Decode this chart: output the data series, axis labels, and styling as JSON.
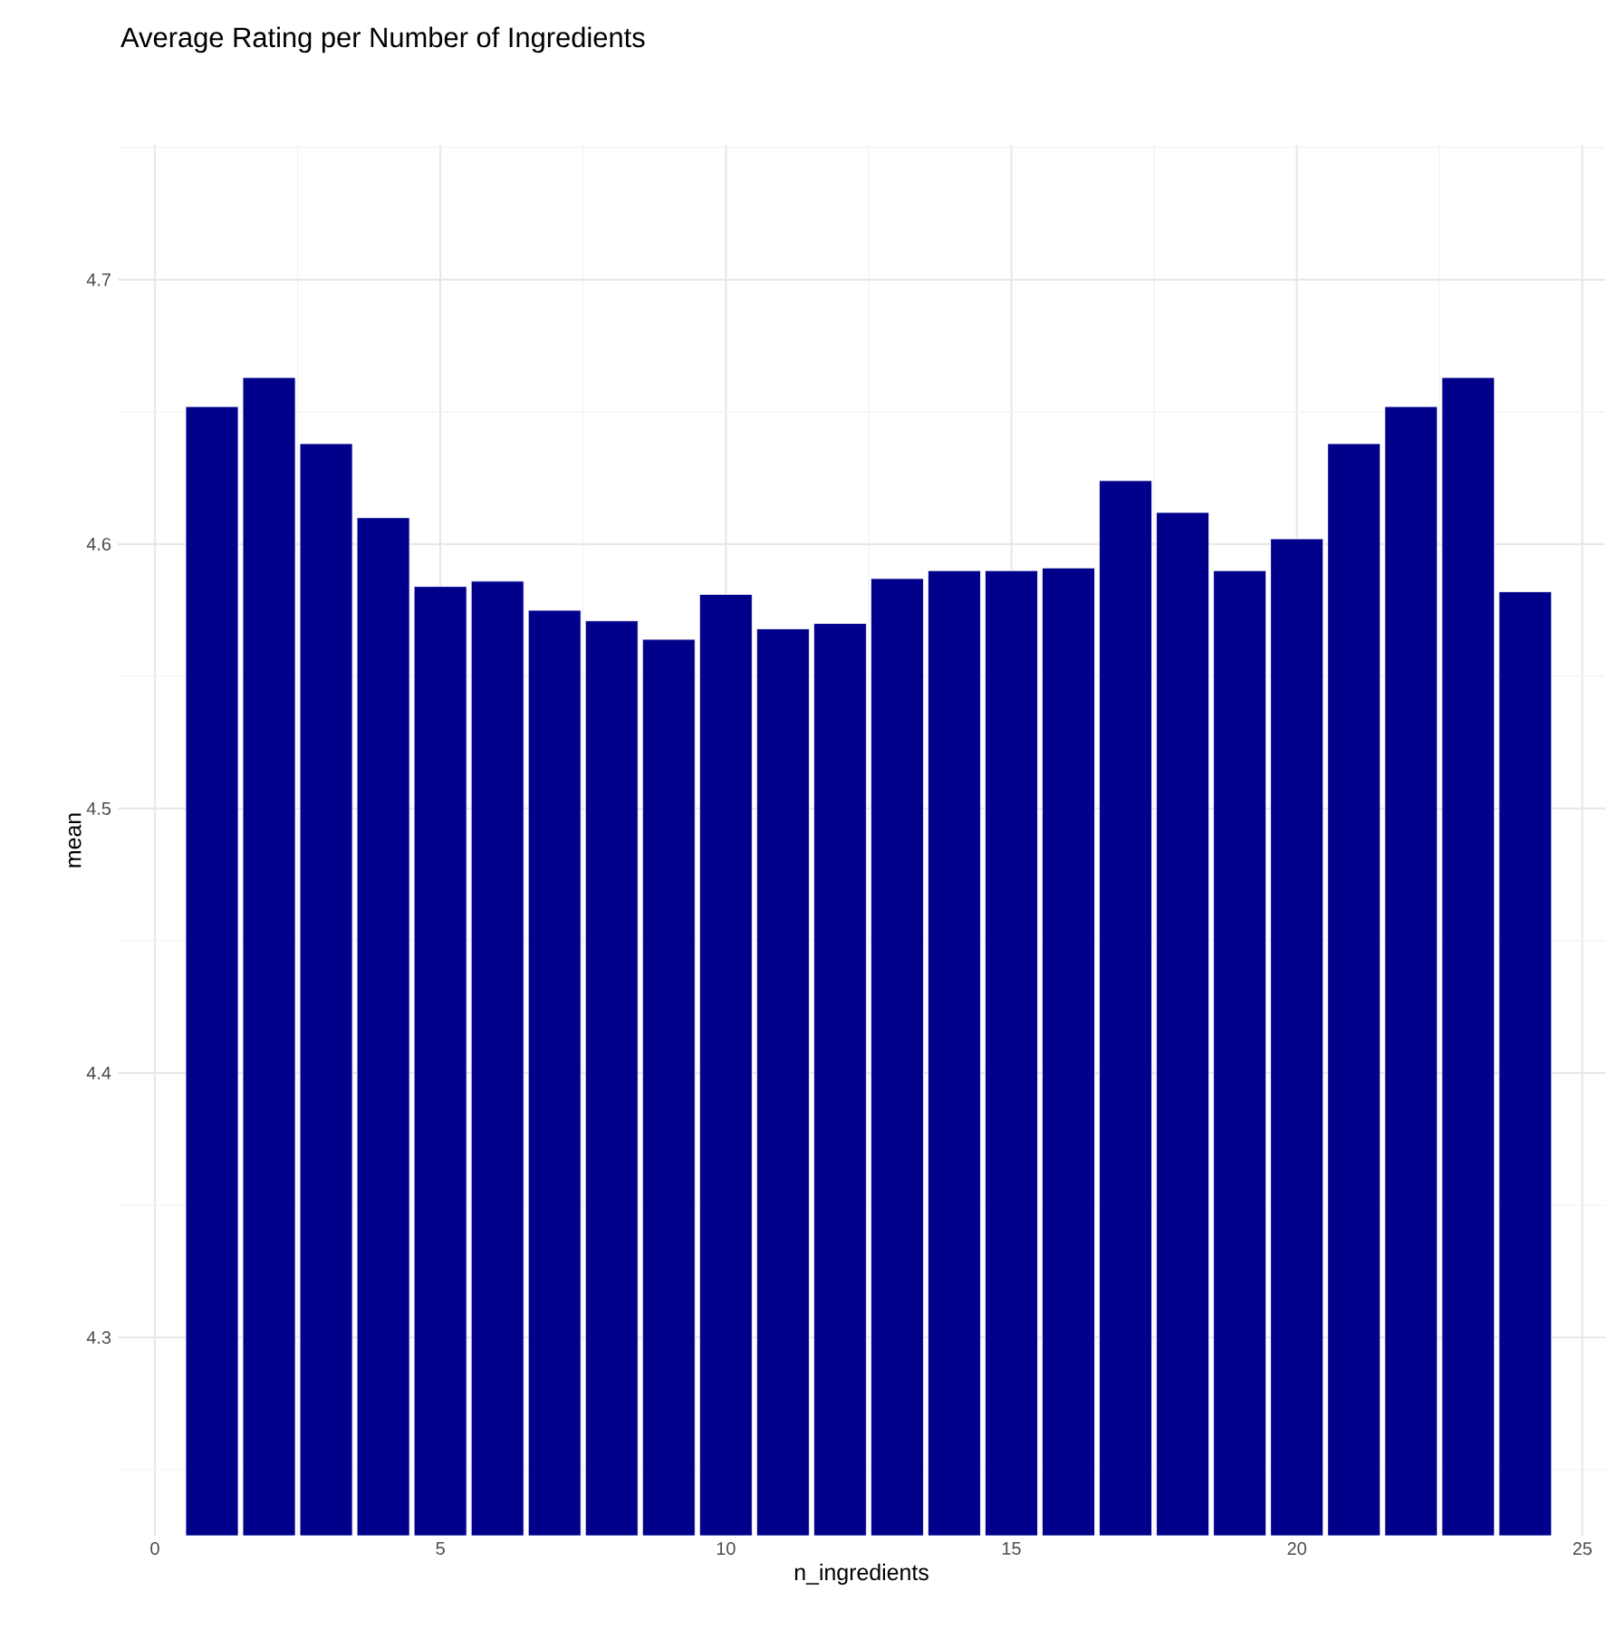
{
  "chart_data": {
    "type": "bar",
    "title": "Average Rating per Number of Ingredients",
    "xlabel": "n_ingredients",
    "ylabel": "mean",
    "color": "#00008b",
    "grid": true,
    "x": [
      1,
      2,
      3,
      4,
      5,
      6,
      7,
      8,
      9,
      10,
      11,
      12,
      13,
      14,
      15,
      16,
      17,
      18,
      19,
      20,
      21,
      22,
      23,
      24
    ],
    "values": [
      4.652,
      4.663,
      4.638,
      4.61,
      4.584,
      4.586,
      4.575,
      4.571,
      4.564,
      4.581,
      4.568,
      4.57,
      4.587,
      4.59,
      4.59,
      4.591,
      4.624,
      4.612,
      4.59,
      4.602,
      4.638,
      4.652,
      4.663,
      4.582
    ],
    "xlim": [
      -0.65,
      25.4
    ],
    "ylim": [
      4.225,
      4.751
    ],
    "xticks": [
      0,
      {
        "value": 2.5,
        "label": null
      },
      5,
      {
        "value": 7.5,
        "label": null
      },
      10,
      {
        "value": 12.5,
        "label": null
      },
      15,
      {
        "value": 17.5,
        "label": null
      },
      20,
      {
        "value": 22.5,
        "label": null
      },
      25
    ],
    "yticks": [
      {
        "value": 4.25,
        "label": null
      },
      4.3,
      {
        "value": 4.35,
        "label": null
      },
      4.4,
      {
        "value": 4.45,
        "label": null
      },
      4.5,
      {
        "value": 4.55,
        "label": null
      },
      4.6,
      {
        "value": 4.65,
        "label": null
      },
      4.7,
      {
        "value": 4.75,
        "label": null
      }
    ]
  }
}
